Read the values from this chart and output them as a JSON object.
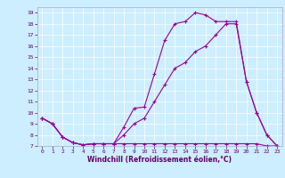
{
  "xlabel": "Windchill (Refroidissement éolien,°C)",
  "bg_color": "#cceeff",
  "line_color": "#990099",
  "xlim": [
    -0.5,
    23.5
  ],
  "ylim": [
    7,
    19.5
  ],
  "xticks": [
    0,
    1,
    2,
    3,
    4,
    5,
    6,
    7,
    8,
    9,
    10,
    11,
    12,
    13,
    14,
    15,
    16,
    17,
    18,
    19,
    20,
    21,
    22,
    23
  ],
  "yticks": [
    7,
    8,
    9,
    10,
    11,
    12,
    13,
    14,
    15,
    16,
    17,
    18,
    19
  ],
  "series": [
    {
      "x": [
        0,
        1,
        2,
        3,
        4,
        5,
        6,
        7,
        8,
        9,
        10,
        11,
        12,
        13,
        14,
        15,
        16,
        17,
        18,
        19,
        20,
        21,
        22,
        23
      ],
      "y": [
        9.5,
        9.0,
        7.8,
        7.3,
        7.1,
        7.2,
        7.2,
        7.2,
        8.7,
        10.4,
        10.5,
        13.5,
        16.5,
        18.0,
        18.2,
        19.0,
        18.8,
        18.2,
        18.2,
        18.2,
        12.8,
        10.0,
        8.0,
        7.0
      ]
    },
    {
      "x": [
        0,
        1,
        2,
        3,
        4,
        5,
        6,
        7,
        8,
        9,
        10,
        11,
        12,
        13,
        14,
        15,
        16,
        17,
        18,
        19,
        20,
        21,
        22,
        23
      ],
      "y": [
        9.5,
        9.0,
        7.8,
        7.3,
        7.1,
        7.2,
        7.2,
        7.2,
        7.2,
        7.2,
        7.2,
        7.2,
        7.2,
        7.2,
        7.2,
        7.2,
        7.2,
        7.2,
        7.2,
        7.2,
        7.2,
        7.2,
        7.0,
        7.0
      ]
    },
    {
      "x": [
        0,
        1,
        2,
        3,
        4,
        5,
        6,
        7,
        8,
        9,
        10,
        11,
        12,
        13,
        14,
        15,
        16,
        17,
        18,
        19,
        20,
        21,
        22,
        23
      ],
      "y": [
        9.5,
        9.0,
        7.8,
        7.3,
        7.1,
        7.2,
        7.2,
        7.2,
        8.0,
        9.0,
        9.5,
        11.0,
        12.5,
        14.0,
        14.5,
        15.5,
        16.0,
        17.0,
        18.0,
        18.0,
        12.8,
        10.0,
        8.0,
        7.0
      ]
    }
  ]
}
